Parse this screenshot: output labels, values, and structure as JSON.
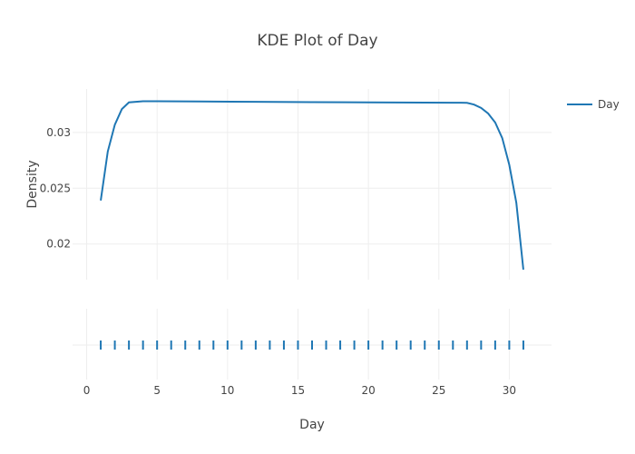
{
  "chart_data": {
    "type": "line",
    "title": "KDE Plot of Day",
    "xlabel": "Day",
    "ylabel": "Density",
    "xlim": [
      -1,
      33
    ],
    "ylim": [
      0.0168,
      0.0339
    ],
    "x_ticks": [
      0,
      5,
      10,
      15,
      20,
      25,
      30
    ],
    "y_ticks": [
      0.02,
      0.025,
      0.03
    ],
    "y_tick_labels": [
      "0.02",
      "0.025",
      "0.03"
    ],
    "grid": true,
    "legend_position": "top-right",
    "series": [
      {
        "name": "Day",
        "color": "#1f77b4",
        "x": [
          1,
          1.5,
          2,
          2.5,
          3,
          4,
          5,
          8,
          12,
          16,
          20,
          24,
          26,
          27,
          27.5,
          28,
          28.5,
          29,
          29.5,
          30,
          30.5,
          31
        ],
        "y": [
          0.0239,
          0.0283,
          0.0307,
          0.0321,
          0.0327,
          0.0328,
          0.0328,
          0.03278,
          0.03275,
          0.03272,
          0.0327,
          0.03268,
          0.03267,
          0.03266,
          0.0325,
          0.0322,
          0.0317,
          0.0309,
          0.0295,
          0.0271,
          0.0237,
          0.0177
        ]
      }
    ],
    "rug": {
      "series": "Day",
      "values": [
        1,
        2,
        3,
        4,
        5,
        6,
        7,
        8,
        9,
        10,
        11,
        12,
        13,
        14,
        15,
        16,
        17,
        18,
        19,
        20,
        21,
        22,
        23,
        24,
        25,
        26,
        27,
        28,
        29,
        30,
        31
      ]
    }
  }
}
